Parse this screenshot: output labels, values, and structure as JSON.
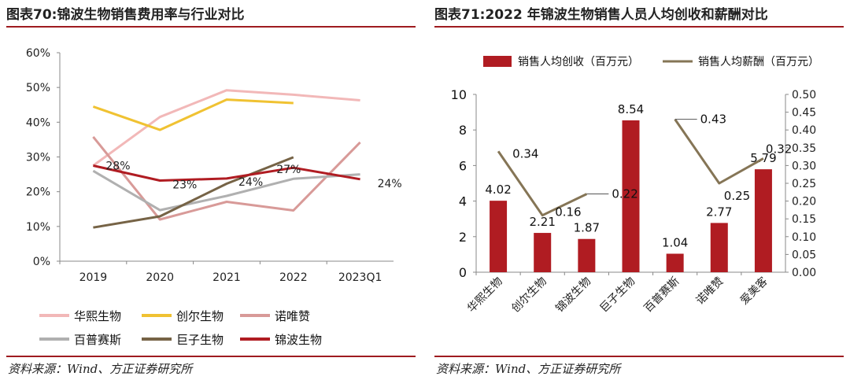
{
  "left": {
    "title": "图表70:锦波生物销售费用率与行业对比",
    "source": "资料来源：Wind、方正证券研究所",
    "chart_data": {
      "type": "line",
      "categories": [
        "2019",
        "2020",
        "2021",
        "2022",
        "2023Q1"
      ],
      "yticks": [
        "0%",
        "10%",
        "20%",
        "30%",
        "40%",
        "50%",
        "60%"
      ],
      "ylim": [
        0,
        60
      ],
      "grid": false,
      "legend_position": "bottom",
      "series": [
        {
          "name": "华熙生物",
          "color": "#f2b8b8",
          "width": 3,
          "values": [
            27.5,
            41.5,
            49.2,
            47.9,
            46.3
          ]
        },
        {
          "name": "创尔生物",
          "color": "#f0c232",
          "width": 3,
          "values": [
            44.5,
            37.8,
            46.5,
            45.5,
            null
          ]
        },
        {
          "name": "诺唯赞",
          "color": "#d89a98",
          "width": 3,
          "values": [
            35.8,
            12.0,
            17.1,
            14.6,
            34.2
          ]
        },
        {
          "name": "百普赛斯",
          "color": "#b0b0b0",
          "width": 3,
          "values": [
            26.0,
            14.7,
            18.8,
            23.7,
            25.0
          ]
        },
        {
          "name": "巨子生物",
          "color": "#766346",
          "width": 3,
          "values": [
            9.7,
            12.9,
            22.3,
            29.9,
            null
          ]
        },
        {
          "name": "锦波生物",
          "color": "#b01c22",
          "width": 3,
          "values": [
            27.5,
            23.2,
            23.8,
            26.9,
            23.6
          ]
        }
      ],
      "data_labels": {
        "series": "锦波生物",
        "labels": [
          "28%",
          "23%",
          "24%",
          "27%",
          "24%"
        ]
      }
    }
  },
  "right": {
    "title": "图表71:2022 年锦波生物销售人员人均创收和薪酬对比",
    "source": "资料来源：Wind、方正证券研究所",
    "chart_data": {
      "type": "bar",
      "categories": [
        "华熙生物",
        "创尔生物",
        "锦波生物",
        "巨子生物",
        "百普赛斯",
        "诺唯赞",
        "爱美客"
      ],
      "series": [
        {
          "name": "销售人均创收（百万元）",
          "type": "bar",
          "axis": "left",
          "color": "#b01c22",
          "values": [
            4.02,
            2.21,
            1.87,
            8.54,
            1.04,
            2.77,
            5.79
          ],
          "labels": [
            "4.02",
            "2.21",
            "1.87",
            "8.54",
            "1.04",
            "2.77",
            "5.79"
          ]
        },
        {
          "name": "销售人均薪酬（百万元）",
          "type": "line",
          "axis": "right",
          "color": "#857556",
          "values": [
            0.34,
            0.16,
            0.22,
            null,
            0.43,
            0.25,
            0.32
          ],
          "labels": [
            "0.34",
            "0.16",
            "0.22",
            "",
            "0.43",
            "0.25",
            "0.32"
          ]
        }
      ],
      "ylim_left": [
        0,
        10
      ],
      "yticks_left": [
        "0",
        "2",
        "4",
        "6",
        "8",
        "10"
      ],
      "ylim_right": [
        0,
        0.5
      ],
      "yticks_right": [
        "0.00",
        "0.05",
        "0.10",
        "0.15",
        "0.20",
        "0.25",
        "0.30",
        "0.35",
        "0.40",
        "0.45",
        "0.50"
      ],
      "grid": false,
      "legend_position": "top"
    }
  }
}
